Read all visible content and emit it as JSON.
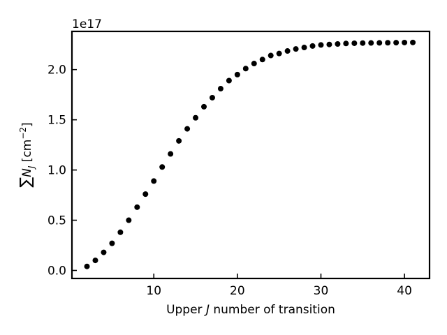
{
  "chart_data": {
    "type": "scatter",
    "x": [
      2,
      3,
      4,
      5,
      6,
      7,
      8,
      9,
      10,
      11,
      12,
      13,
      14,
      15,
      16,
      17,
      18,
      19,
      20,
      21,
      22,
      23,
      24,
      25,
      26,
      27,
      28,
      29,
      30,
      31,
      32,
      33,
      34,
      35,
      36,
      37,
      38,
      39,
      40,
      41
    ],
    "y": [
      0.04,
      0.1,
      0.18,
      0.27,
      0.38,
      0.5,
      0.63,
      0.76,
      0.89,
      1.03,
      1.16,
      1.29,
      1.41,
      1.52,
      1.63,
      1.72,
      1.81,
      1.89,
      1.95,
      2.01,
      2.06,
      2.1,
      2.14,
      2.16,
      2.185,
      2.205,
      2.22,
      2.235,
      2.245,
      2.25,
      2.255,
      2.26,
      2.262,
      2.264,
      2.265,
      2.266,
      2.267,
      2.268,
      2.269,
      2.27
    ],
    "xlim": [
      0.2,
      43.0
    ],
    "ylim": [
      -0.08,
      2.38
    ],
    "xticks": [
      10,
      20,
      30,
      40
    ],
    "xtick_labels": [
      "10",
      "20",
      "30",
      "40"
    ],
    "yticks": [
      0.0,
      0.5,
      1.0,
      1.5,
      2.0
    ],
    "ytick_labels": [
      "0.0",
      "0.5",
      "1.0",
      "1.5",
      "2.0"
    ],
    "offset_text": "1e17",
    "xlabel": {
      "pre": "Upper ",
      "italic": "J",
      "post": " number of transition"
    },
    "ylabel": {
      "sum": "∑",
      "sym": "N",
      "sub": "J",
      "unit_pre": " [cm",
      "sup": "−2",
      "unit_post": "]"
    },
    "marker_color": "#000000",
    "grid": false,
    "legend": "none"
  }
}
